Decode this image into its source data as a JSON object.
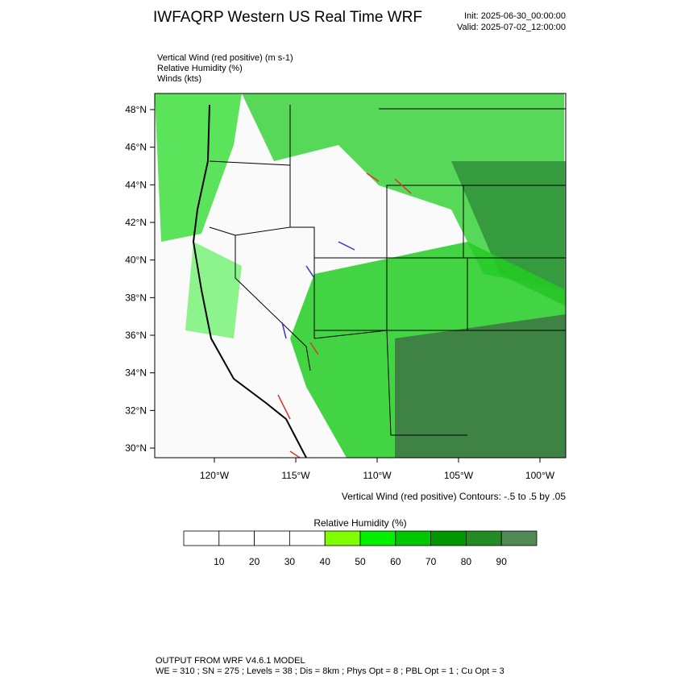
{
  "header": {
    "title": "IWFAQRP Western US Real Time WRF",
    "init": "Init: 2025-06-30_00:00:00",
    "valid": "Valid: 2025-07-02_12:00:00"
  },
  "fields": [
    "Vertical Wind (red positive)   (m s-1)",
    "Relative Humidity   (%)",
    "Winds   (kts)"
  ],
  "map": {
    "lat_labels": [
      "48°N",
      "46°N",
      "44°N",
      "42°N",
      "40°N",
      "38°N",
      "36°N",
      "34°N",
      "32°N",
      "30°N"
    ],
    "lon_labels": [
      "120°W",
      "115°W",
      "110°W",
      "105°W",
      "100°W"
    ],
    "contour_note": "Vertical Wind (red positive) Contours: -.5 to .5 by .05"
  },
  "colorbar": {
    "title": "Relative Humidity   (%)",
    "labels": [
      10,
      20,
      30,
      40,
      50,
      60,
      70,
      80,
      90
    ],
    "colors": [
      "#ffffff",
      "#ffffff",
      "#ffffff",
      "#ffffff",
      "#80ff00",
      "#00f000",
      "#00c800",
      "#009600",
      "#228b22",
      "#4f8a55"
    ]
  },
  "footer": {
    "line1": "OUTPUT FROM WRF V4.6.1 MODEL",
    "line2": "WE = 310 ; SN = 275 ; Levels = 38 ; Dis = 8km ; Phys Opt = 8 ; PBL Opt = 1 ; Cu Opt = 3"
  }
}
